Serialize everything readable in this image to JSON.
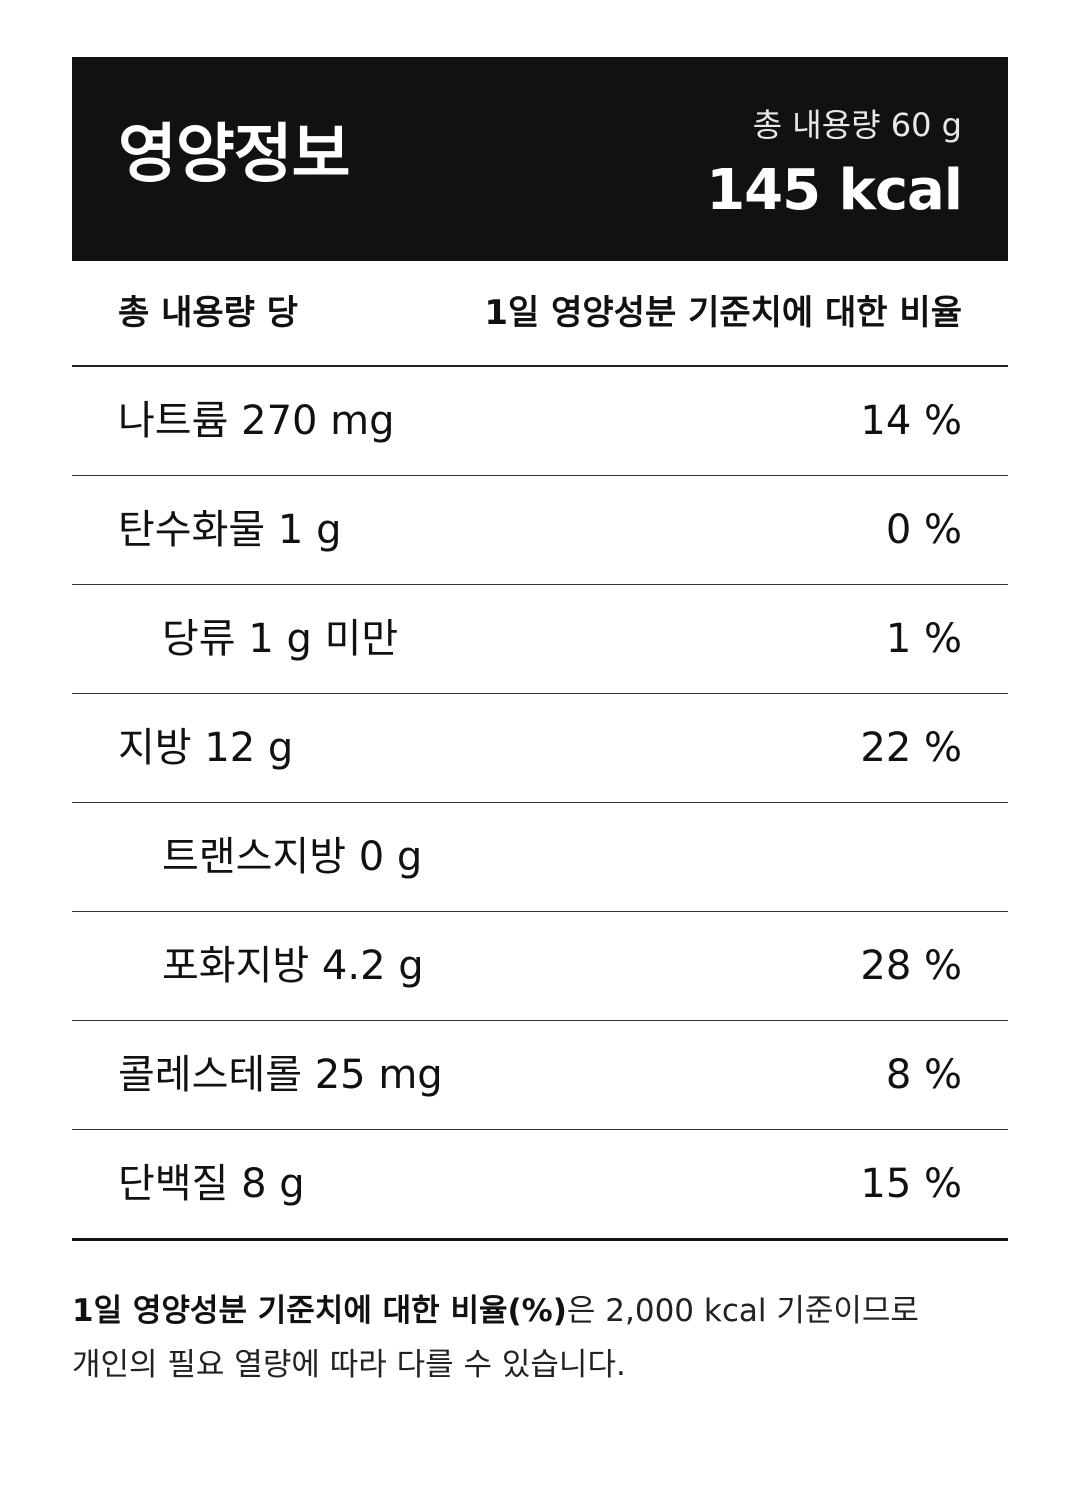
{
  "header": {
    "title": "영양정보",
    "total_amount": "총 내용량 60 g",
    "calories": "145 kcal"
  },
  "columns": {
    "per_label": "총 내용량 당",
    "daily_value_label": "1일 영양성분 기준치에 대한 비율"
  },
  "nutrients": [
    {
      "name": "나트륨 270 mg",
      "percent": "14 %",
      "indent": false
    },
    {
      "name": "탄수화물 1 g",
      "percent": "0 %",
      "indent": false
    },
    {
      "name": "당류 1 g 미만",
      "percent": "1 %",
      "indent": true
    },
    {
      "name": "지방 12 g",
      "percent": "22 %",
      "indent": false
    },
    {
      "name": "트랜스지방 0 g",
      "percent": "",
      "indent": true
    },
    {
      "name": "포화지방 4.2 g",
      "percent": "28 %",
      "indent": true
    },
    {
      "name": "콜레스테롤 25 mg",
      "percent": "8 %",
      "indent": false
    },
    {
      "name": "단백질 8 g",
      "percent": "15 %",
      "indent": false
    }
  ],
  "footnote": {
    "bold": "1일 영양성분 기준치에 대한 비율(%)",
    "line1_rest": "은 2,000 kcal 기준이므로",
    "line2": "개인의 필요 열량에 따라 다를 수 있습니다."
  }
}
